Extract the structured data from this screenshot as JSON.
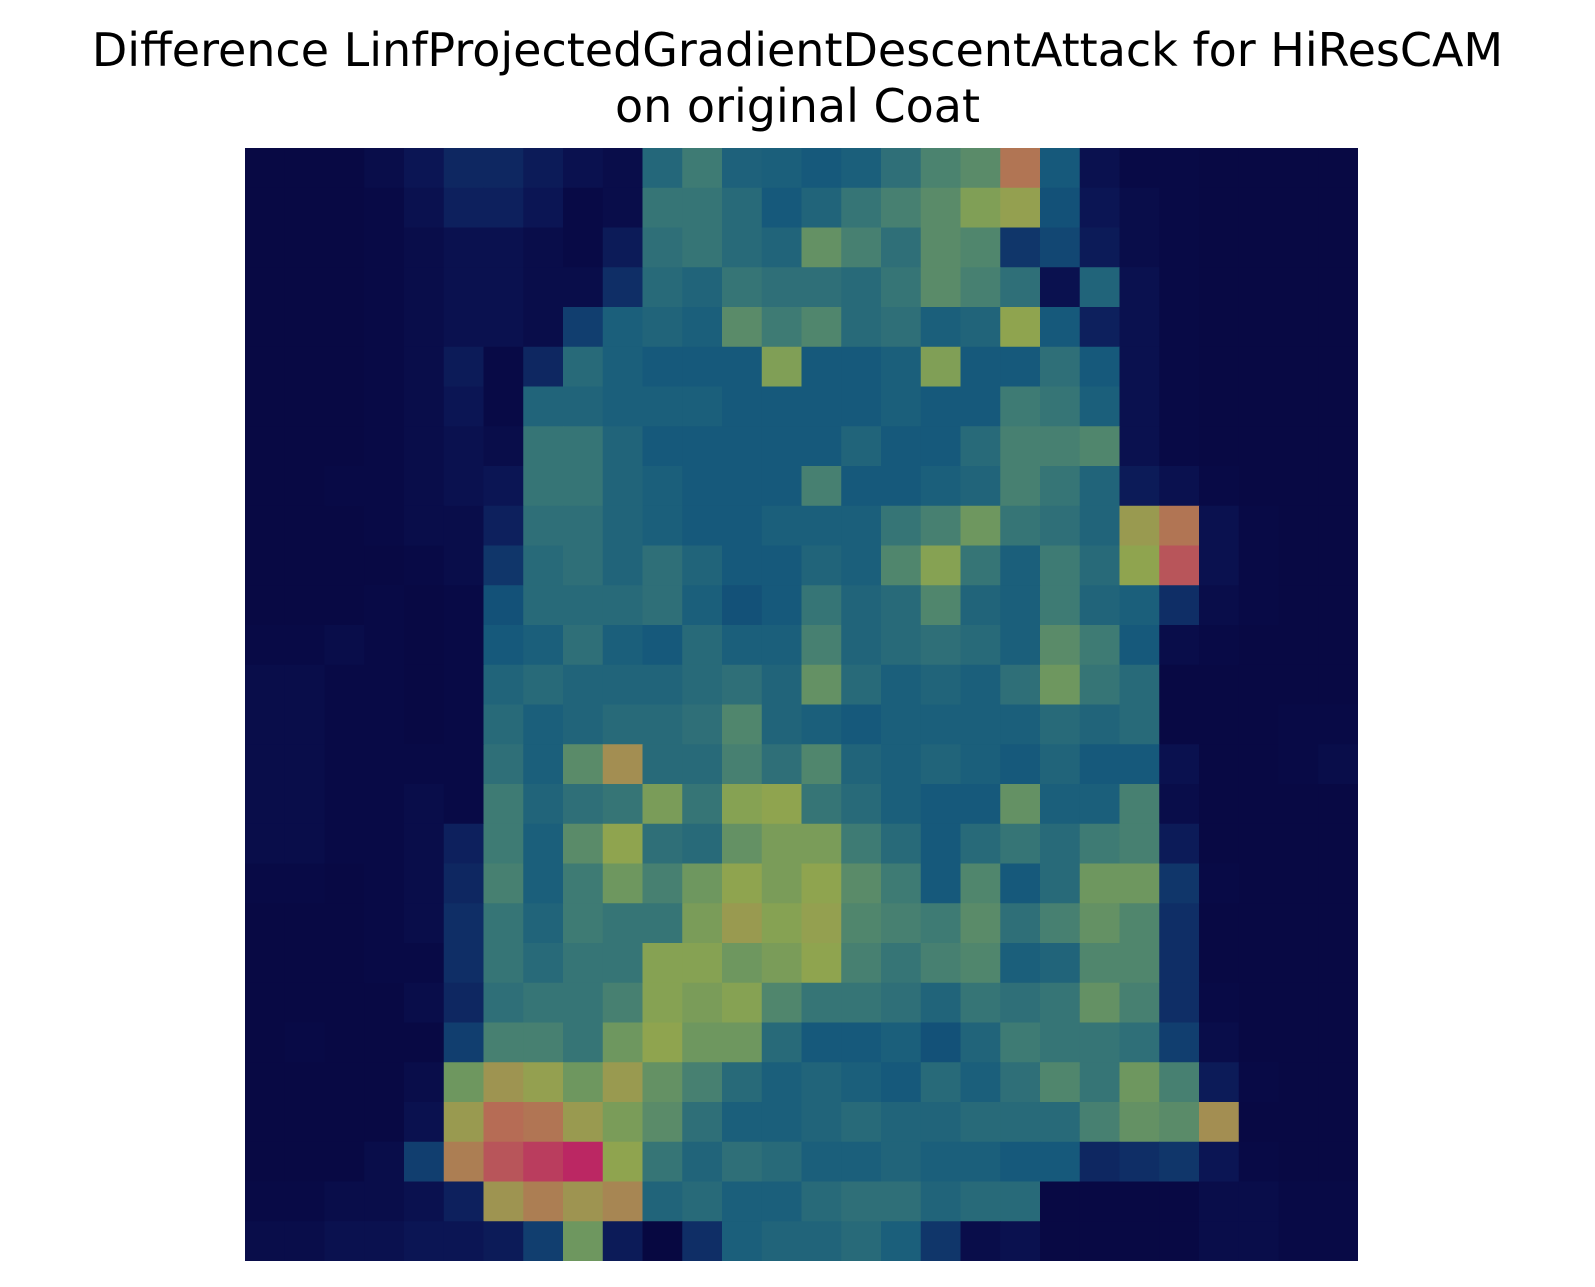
{
  "chart_data": {
    "type": "heatmap",
    "title": "Difference LinfProjectedGradientDescentAttack for HiResCAM",
    "subtitle": "on original Coat",
    "rows": 28,
    "cols": 28,
    "axes_visible": false,
    "colormap": "jet blended over grayscale image",
    "values": [
      [
        0.05,
        0.05,
        0.05,
        0.08,
        0.12,
        0.18,
        0.18,
        0.14,
        0.1,
        0.08,
        0.35,
        0.42,
        0.33,
        0.32,
        0.3,
        0.32,
        0.38,
        0.45,
        0.48,
        0.72,
        0.3,
        0.1,
        0.06,
        0.06,
        0.05,
        0.05,
        0.05,
        0.05
      ],
      [
        0.05,
        0.05,
        0.05,
        0.06,
        0.1,
        0.16,
        0.16,
        0.12,
        0.06,
        0.08,
        0.4,
        0.4,
        0.36,
        0.3,
        0.34,
        0.4,
        0.44,
        0.48,
        0.55,
        0.6,
        0.28,
        0.12,
        0.08,
        0.06,
        0.05,
        0.05,
        0.05,
        0.05
      ],
      [
        0.05,
        0.05,
        0.05,
        0.06,
        0.08,
        0.1,
        0.1,
        0.08,
        0.06,
        0.14,
        0.38,
        0.4,
        0.36,
        0.34,
        0.5,
        0.44,
        0.38,
        0.48,
        0.46,
        0.22,
        0.26,
        0.14,
        0.08,
        0.06,
        0.05,
        0.05,
        0.05,
        0.05
      ],
      [
        0.05,
        0.05,
        0.05,
        0.06,
        0.08,
        0.1,
        0.1,
        0.08,
        0.08,
        0.2,
        0.36,
        0.34,
        0.4,
        0.38,
        0.38,
        0.36,
        0.4,
        0.48,
        0.44,
        0.38,
        0.1,
        0.34,
        0.1,
        0.06,
        0.05,
        0.05,
        0.05,
        0.05
      ],
      [
        0.05,
        0.05,
        0.05,
        0.06,
        0.08,
        0.1,
        0.1,
        0.08,
        0.24,
        0.32,
        0.34,
        0.32,
        0.48,
        0.42,
        0.46,
        0.36,
        0.38,
        0.32,
        0.34,
        0.58,
        0.3,
        0.16,
        0.1,
        0.06,
        0.05,
        0.05,
        0.05,
        0.05
      ],
      [
        0.05,
        0.05,
        0.05,
        0.06,
        0.08,
        0.14,
        0.06,
        0.18,
        0.36,
        0.32,
        0.3,
        0.3,
        0.3,
        0.55,
        0.3,
        0.3,
        0.32,
        0.55,
        0.3,
        0.3,
        0.38,
        0.3,
        0.1,
        0.06,
        0.05,
        0.05,
        0.05,
        0.05
      ],
      [
        0.05,
        0.05,
        0.05,
        0.06,
        0.08,
        0.12,
        0.06,
        0.34,
        0.34,
        0.32,
        0.32,
        0.32,
        0.3,
        0.3,
        0.3,
        0.3,
        0.32,
        0.3,
        0.3,
        0.42,
        0.4,
        0.32,
        0.1,
        0.06,
        0.05,
        0.05,
        0.05,
        0.05
      ],
      [
        0.05,
        0.05,
        0.05,
        0.06,
        0.08,
        0.1,
        0.08,
        0.4,
        0.4,
        0.34,
        0.3,
        0.3,
        0.3,
        0.3,
        0.3,
        0.34,
        0.3,
        0.3,
        0.36,
        0.44,
        0.44,
        0.46,
        0.1,
        0.06,
        0.05,
        0.05,
        0.05,
        0.05
      ],
      [
        0.05,
        0.05,
        0.06,
        0.06,
        0.08,
        0.1,
        0.12,
        0.4,
        0.4,
        0.34,
        0.32,
        0.3,
        0.3,
        0.3,
        0.44,
        0.3,
        0.3,
        0.32,
        0.34,
        0.44,
        0.4,
        0.34,
        0.14,
        0.1,
        0.06,
        0.05,
        0.05,
        0.05
      ],
      [
        0.05,
        0.05,
        0.05,
        0.06,
        0.08,
        0.08,
        0.16,
        0.38,
        0.38,
        0.34,
        0.32,
        0.3,
        0.3,
        0.32,
        0.32,
        0.32,
        0.4,
        0.44,
        0.52,
        0.4,
        0.38,
        0.34,
        0.62,
        0.72,
        0.1,
        0.06,
        0.05,
        0.05
      ],
      [
        0.05,
        0.05,
        0.05,
        0.05,
        0.06,
        0.08,
        0.22,
        0.36,
        0.38,
        0.34,
        0.38,
        0.34,
        0.3,
        0.3,
        0.34,
        0.32,
        0.46,
        0.56,
        0.4,
        0.32,
        0.42,
        0.36,
        0.58,
        0.78,
        0.1,
        0.06,
        0.05,
        0.05
      ],
      [
        0.05,
        0.05,
        0.05,
        0.06,
        0.05,
        0.06,
        0.28,
        0.36,
        0.36,
        0.36,
        0.38,
        0.32,
        0.28,
        0.3,
        0.4,
        0.34,
        0.36,
        0.46,
        0.34,
        0.32,
        0.42,
        0.34,
        0.32,
        0.2,
        0.08,
        0.06,
        0.05,
        0.05
      ],
      [
        0.06,
        0.06,
        0.08,
        0.06,
        0.05,
        0.06,
        0.3,
        0.32,
        0.38,
        0.32,
        0.3,
        0.36,
        0.32,
        0.32,
        0.44,
        0.34,
        0.36,
        0.38,
        0.36,
        0.32,
        0.48,
        0.42,
        0.3,
        0.08,
        0.06,
        0.05,
        0.05,
        0.05
      ],
      [
        0.08,
        0.08,
        0.06,
        0.06,
        0.05,
        0.06,
        0.34,
        0.36,
        0.34,
        0.34,
        0.34,
        0.36,
        0.38,
        0.34,
        0.5,
        0.36,
        0.32,
        0.34,
        0.32,
        0.38,
        0.52,
        0.4,
        0.36,
        0.05,
        0.05,
        0.05,
        0.05,
        0.05
      ],
      [
        0.08,
        0.08,
        0.06,
        0.06,
        0.05,
        0.06,
        0.36,
        0.32,
        0.34,
        0.36,
        0.36,
        0.38,
        0.46,
        0.34,
        0.32,
        0.3,
        0.32,
        0.32,
        0.32,
        0.32,
        0.36,
        0.34,
        0.36,
        0.05,
        0.05,
        0.05,
        0.06,
        0.06
      ],
      [
        0.08,
        0.08,
        0.06,
        0.06,
        0.06,
        0.06,
        0.38,
        0.32,
        0.48,
        0.66,
        0.36,
        0.36,
        0.44,
        0.38,
        0.46,
        0.34,
        0.32,
        0.34,
        0.32,
        0.3,
        0.34,
        0.3,
        0.3,
        0.1,
        0.05,
        0.05,
        0.06,
        0.08
      ],
      [
        0.08,
        0.08,
        0.06,
        0.06,
        0.08,
        0.06,
        0.42,
        0.34,
        0.38,
        0.4,
        0.54,
        0.4,
        0.56,
        0.58,
        0.4,
        0.36,
        0.32,
        0.3,
        0.3,
        0.5,
        0.32,
        0.32,
        0.44,
        0.08,
        0.05,
        0.05,
        0.05,
        0.05
      ],
      [
        0.08,
        0.08,
        0.06,
        0.06,
        0.08,
        0.16,
        0.42,
        0.32,
        0.48,
        0.58,
        0.38,
        0.36,
        0.5,
        0.54,
        0.54,
        0.42,
        0.36,
        0.3,
        0.36,
        0.4,
        0.36,
        0.42,
        0.44,
        0.14,
        0.05,
        0.05,
        0.05,
        0.05
      ],
      [
        0.06,
        0.06,
        0.05,
        0.06,
        0.08,
        0.18,
        0.44,
        0.32,
        0.42,
        0.52,
        0.44,
        0.52,
        0.58,
        0.54,
        0.58,
        0.48,
        0.42,
        0.3,
        0.46,
        0.3,
        0.36,
        0.52,
        0.52,
        0.22,
        0.06,
        0.05,
        0.05,
        0.05
      ],
      [
        0.05,
        0.05,
        0.05,
        0.06,
        0.08,
        0.2,
        0.4,
        0.34,
        0.42,
        0.4,
        0.4,
        0.54,
        0.62,
        0.56,
        0.6,
        0.46,
        0.44,
        0.42,
        0.48,
        0.38,
        0.44,
        0.5,
        0.46,
        0.2,
        0.05,
        0.05,
        0.05,
        0.05
      ],
      [
        0.05,
        0.05,
        0.05,
        0.06,
        0.06,
        0.2,
        0.4,
        0.36,
        0.4,
        0.4,
        0.56,
        0.56,
        0.52,
        0.54,
        0.58,
        0.44,
        0.4,
        0.44,
        0.46,
        0.32,
        0.34,
        0.46,
        0.46,
        0.2,
        0.05,
        0.05,
        0.05,
        0.05
      ],
      [
        0.05,
        0.05,
        0.05,
        0.05,
        0.08,
        0.18,
        0.38,
        0.4,
        0.4,
        0.44,
        0.56,
        0.54,
        0.56,
        0.46,
        0.4,
        0.4,
        0.38,
        0.34,
        0.4,
        0.38,
        0.4,
        0.5,
        0.44,
        0.2,
        0.06,
        0.05,
        0.05,
        0.05
      ],
      [
        0.05,
        0.06,
        0.05,
        0.05,
        0.05,
        0.24,
        0.44,
        0.44,
        0.4,
        0.52,
        0.58,
        0.52,
        0.52,
        0.36,
        0.3,
        0.3,
        0.32,
        0.28,
        0.34,
        0.42,
        0.4,
        0.4,
        0.38,
        0.24,
        0.08,
        0.05,
        0.05,
        0.05
      ],
      [
        0.05,
        0.05,
        0.05,
        0.05,
        0.08,
        0.52,
        0.64,
        0.6,
        0.52,
        0.62,
        0.5,
        0.44,
        0.36,
        0.32,
        0.34,
        0.32,
        0.3,
        0.36,
        0.32,
        0.38,
        0.46,
        0.4,
        0.52,
        0.44,
        0.14,
        0.06,
        0.05,
        0.05
      ],
      [
        0.05,
        0.05,
        0.05,
        0.05,
        0.1,
        0.62,
        0.74,
        0.72,
        0.62,
        0.54,
        0.48,
        0.38,
        0.32,
        0.32,
        0.34,
        0.36,
        0.34,
        0.34,
        0.36,
        0.36,
        0.36,
        0.44,
        0.5,
        0.48,
        0.66,
        0.05,
        0.05,
        0.05
      ],
      [
        0.05,
        0.05,
        0.05,
        0.08,
        0.24,
        0.7,
        0.78,
        0.82,
        0.86,
        0.58,
        0.4,
        0.34,
        0.38,
        0.36,
        0.32,
        0.32,
        0.34,
        0.32,
        0.32,
        0.3,
        0.3,
        0.18,
        0.2,
        0.22,
        0.12,
        0.06,
        0.05,
        0.05
      ],
      [
        0.06,
        0.06,
        0.08,
        0.08,
        0.1,
        0.16,
        0.64,
        0.7,
        0.64,
        0.68,
        0.34,
        0.36,
        0.32,
        0.32,
        0.36,
        0.38,
        0.38,
        0.34,
        0.36,
        0.36,
        0.05,
        0.05,
        0.05,
        0.05,
        0.08,
        0.08,
        0.06,
        0.06
      ],
      [
        0.08,
        0.08,
        0.1,
        0.1,
        0.12,
        0.12,
        0.14,
        0.24,
        0.52,
        0.14,
        0.04,
        0.2,
        0.32,
        0.34,
        0.34,
        0.36,
        0.32,
        0.22,
        0.08,
        0.1,
        0.05,
        0.05,
        0.05,
        0.05,
        0.08,
        0.08,
        0.06,
        0.06
      ]
    ]
  }
}
